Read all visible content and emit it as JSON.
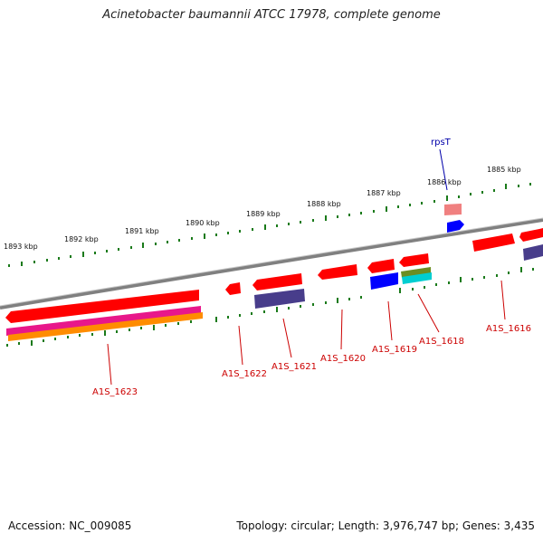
{
  "title": "Acinetobacter baumannii ATCC 17978, complete genome",
  "footer": {
    "accession": "Accession: NC_009085",
    "topology": "Topology: circular; Length: 3,976,747 bp; Genes: 3,435"
  },
  "colors": {
    "backbone": "#808080",
    "tick": "#1a7a1a",
    "gene_red": "#ff0000",
    "gene_pink": "#f08080",
    "gene_navy": "#483d8b",
    "gene_blue": "#0000ff",
    "gene_olive": "#6b8e23",
    "gene_cyan": "#00ced1",
    "gene_magenta": "#e8178a",
    "gene_orange": "#ff8c00",
    "label_red": "#cc0000",
    "label_blue": "#0000aa"
  },
  "kbp_ticks": [
    "1893 kbp",
    "1892 kbp",
    "1891 kbp",
    "1890 kbp",
    "1889 kbp",
    "1888 kbp",
    "1887 kbp",
    "1886 kbp",
    "1885 kbp"
  ],
  "gene_labels": [
    "A1S_1623",
    "A1S_1622",
    "A1S_1621",
    "A1S_1620",
    "A1S_1619",
    "A1S_1618",
    "A1S_1616"
  ],
  "trna_label": "rpsT"
}
